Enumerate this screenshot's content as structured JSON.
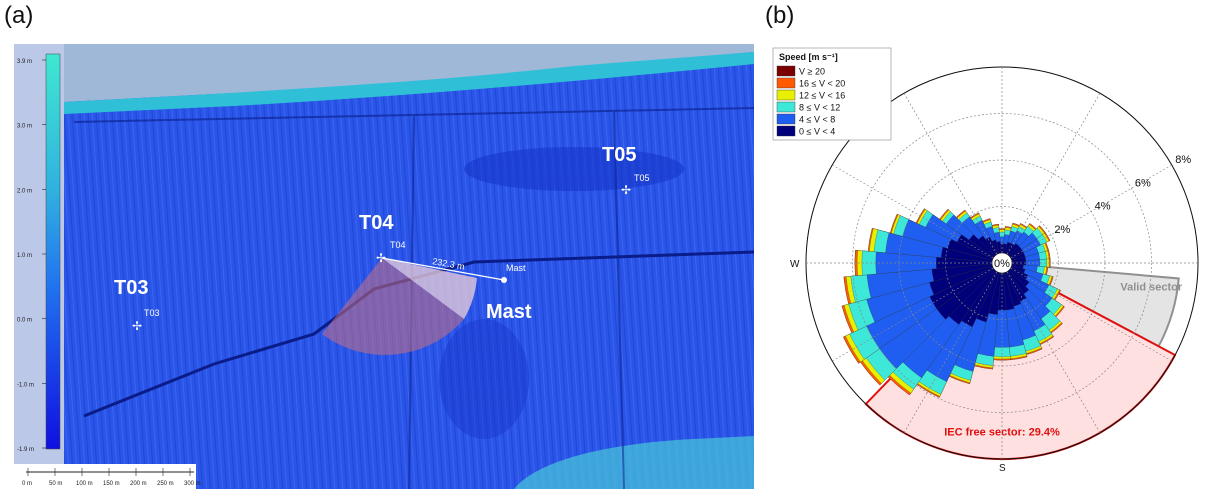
{
  "panels": {
    "a": {
      "label": "(a)"
    },
    "b": {
      "label": "(b)"
    }
  },
  "map": {
    "turbines": [
      {
        "id": "T03",
        "big_label": "T03",
        "small_label": "T03"
      },
      {
        "id": "T04",
        "big_label": "T04",
        "small_label": "T04"
      },
      {
        "id": "T05",
        "big_label": "T05",
        "small_label": "T05"
      }
    ],
    "mast": {
      "big_label": "Mast",
      "small_label": "Mast"
    },
    "distance_label": "232.3 m",
    "colorbar": {
      "ticks": [
        "3.9 m",
        "3.0 m",
        "2.0 m",
        "1.0 m",
        "0.0 m",
        "-1.0 m",
        "-1.9 m"
      ]
    },
    "scalebar": {
      "ticks": [
        "0 m",
        "50 m",
        "100 m",
        "150 m",
        "200 m",
        "250 m",
        "300 m"
      ]
    },
    "colors": {
      "water": "#1a3fd0",
      "land": "#2a55e8",
      "sector": "#c87080"
    }
  },
  "chart_data": {
    "type": "polar-bar",
    "title": "",
    "legend": {
      "title": "Speed [m s⁻¹]",
      "placement": "top-left",
      "bins": [
        {
          "label": "V ≥ 20",
          "color": "#7a0000"
        },
        {
          "label": "16 ≤ V < 20",
          "color": "#ff5a00"
        },
        {
          "label": "12 ≤ V < 16",
          "color": "#e8f000"
        },
        {
          "label": "8 ≤ V < 12",
          "color": "#3ee8d8"
        },
        {
          "label": "4 ≤ V < 8",
          "color": "#1f5ef0"
        },
        {
          "label": "0 ≤ V < 4",
          "color": "#00007a"
        }
      ]
    },
    "direction_labels": {
      "W": "W",
      "S": "S"
    },
    "ring_labels": [
      "0%",
      "2%",
      "4%",
      "6%",
      "8%"
    ],
    "rmax": 8,
    "sector_width_deg": 10,
    "directions_deg": [
      0,
      10,
      20,
      30,
      40,
      50,
      60,
      70,
      80,
      90,
      100,
      110,
      120,
      130,
      140,
      150,
      160,
      170,
      180,
      190,
      200,
      210,
      220,
      230,
      240,
      250,
      260,
      270,
      280,
      290,
      300,
      310,
      320,
      330,
      340,
      350
    ],
    "cumulative_percent": [
      [
        0.4,
        0.4,
        0.5,
        0.5,
        0.6,
        0.6,
        0.6,
        0.6,
        0.6,
        0.6,
        0.5,
        0.6,
        0.8,
        1.0,
        1.2,
        1.4,
        1.5,
        1.6,
        1.6,
        1.8,
        2.2,
        2.6,
        2.8,
        3.0,
        3.0,
        2.8,
        2.6,
        2.4,
        2.2,
        2.0,
        1.7,
        1.3,
        1.0,
        0.8,
        0.6,
        0.5
      ],
      [
        0.7,
        0.8,
        1.0,
        1.1,
        1.2,
        1.4,
        1.4,
        1.2,
        1.2,
        1.2,
        1.1,
        1.4,
        1.8,
        2.2,
        2.5,
        2.8,
        3.0,
        3.2,
        3.2,
        3.6,
        4.4,
        5.2,
        5.6,
        6.0,
        6.0,
        5.6,
        5.4,
        5.0,
        4.6,
        4.0,
        3.2,
        2.5,
        2.0,
        1.6,
        1.2,
        0.9
      ],
      [
        0.9,
        1.0,
        1.2,
        1.3,
        1.5,
        1.7,
        1.7,
        1.5,
        1.5,
        1.5,
        1.4,
        1.7,
        2.2,
        2.7,
        3.1,
        3.3,
        3.5,
        3.6,
        3.6,
        4.0,
        4.8,
        5.8,
        6.2,
        6.7,
        6.8,
        6.4,
        6.1,
        5.6,
        5.1,
        4.4,
        3.5,
        2.7,
        2.2,
        1.8,
        1.4,
        1.1
      ],
      [
        1.0,
        1.1,
        1.3,
        1.4,
        1.6,
        1.8,
        1.8,
        1.6,
        1.6,
        1.6,
        1.5,
        1.8,
        2.3,
        2.8,
        3.2,
        3.4,
        3.6,
        3.7,
        3.7,
        4.1,
        4.9,
        5.9,
        6.4,
        6.9,
        7.0,
        6.6,
        6.3,
        5.8,
        5.3,
        4.5,
        3.6,
        2.8,
        2.3,
        1.9,
        1.5,
        1.2
      ],
      [
        1.05,
        1.15,
        1.35,
        1.45,
        1.65,
        1.85,
        1.85,
        1.65,
        1.65,
        1.65,
        1.55,
        1.85,
        2.35,
        2.85,
        3.25,
        3.45,
        3.65,
        3.75,
        3.75,
        4.15,
        4.95,
        5.95,
        6.5,
        7.0,
        7.1,
        6.7,
        6.4,
        5.9,
        5.35,
        4.55,
        3.65,
        2.85,
        2.35,
        1.95,
        1.55,
        1.25
      ],
      [
        1.05,
        1.15,
        1.35,
        1.45,
        1.65,
        1.85,
        1.85,
        1.65,
        1.65,
        1.65,
        1.55,
        1.85,
        2.35,
        2.85,
        3.25,
        3.45,
        3.65,
        3.75,
        3.75,
        4.15,
        4.95,
        5.95,
        6.5,
        7.0,
        7.1,
        6.7,
        6.4,
        5.9,
        5.35,
        4.55,
        3.65,
        2.85,
        2.35,
        1.95,
        1.55,
        1.25
      ]
    ],
    "sectors": [
      {
        "label": "Valid sector",
        "from_deg": 95,
        "to_deg": 118,
        "color": "#e4e4e4",
        "edge": "#909090"
      },
      {
        "label": "IEC free sector: 29.4%",
        "from_deg": 118,
        "to_deg": 224,
        "color": "#ffe0e0",
        "edge": "#e01010"
      }
    ]
  }
}
